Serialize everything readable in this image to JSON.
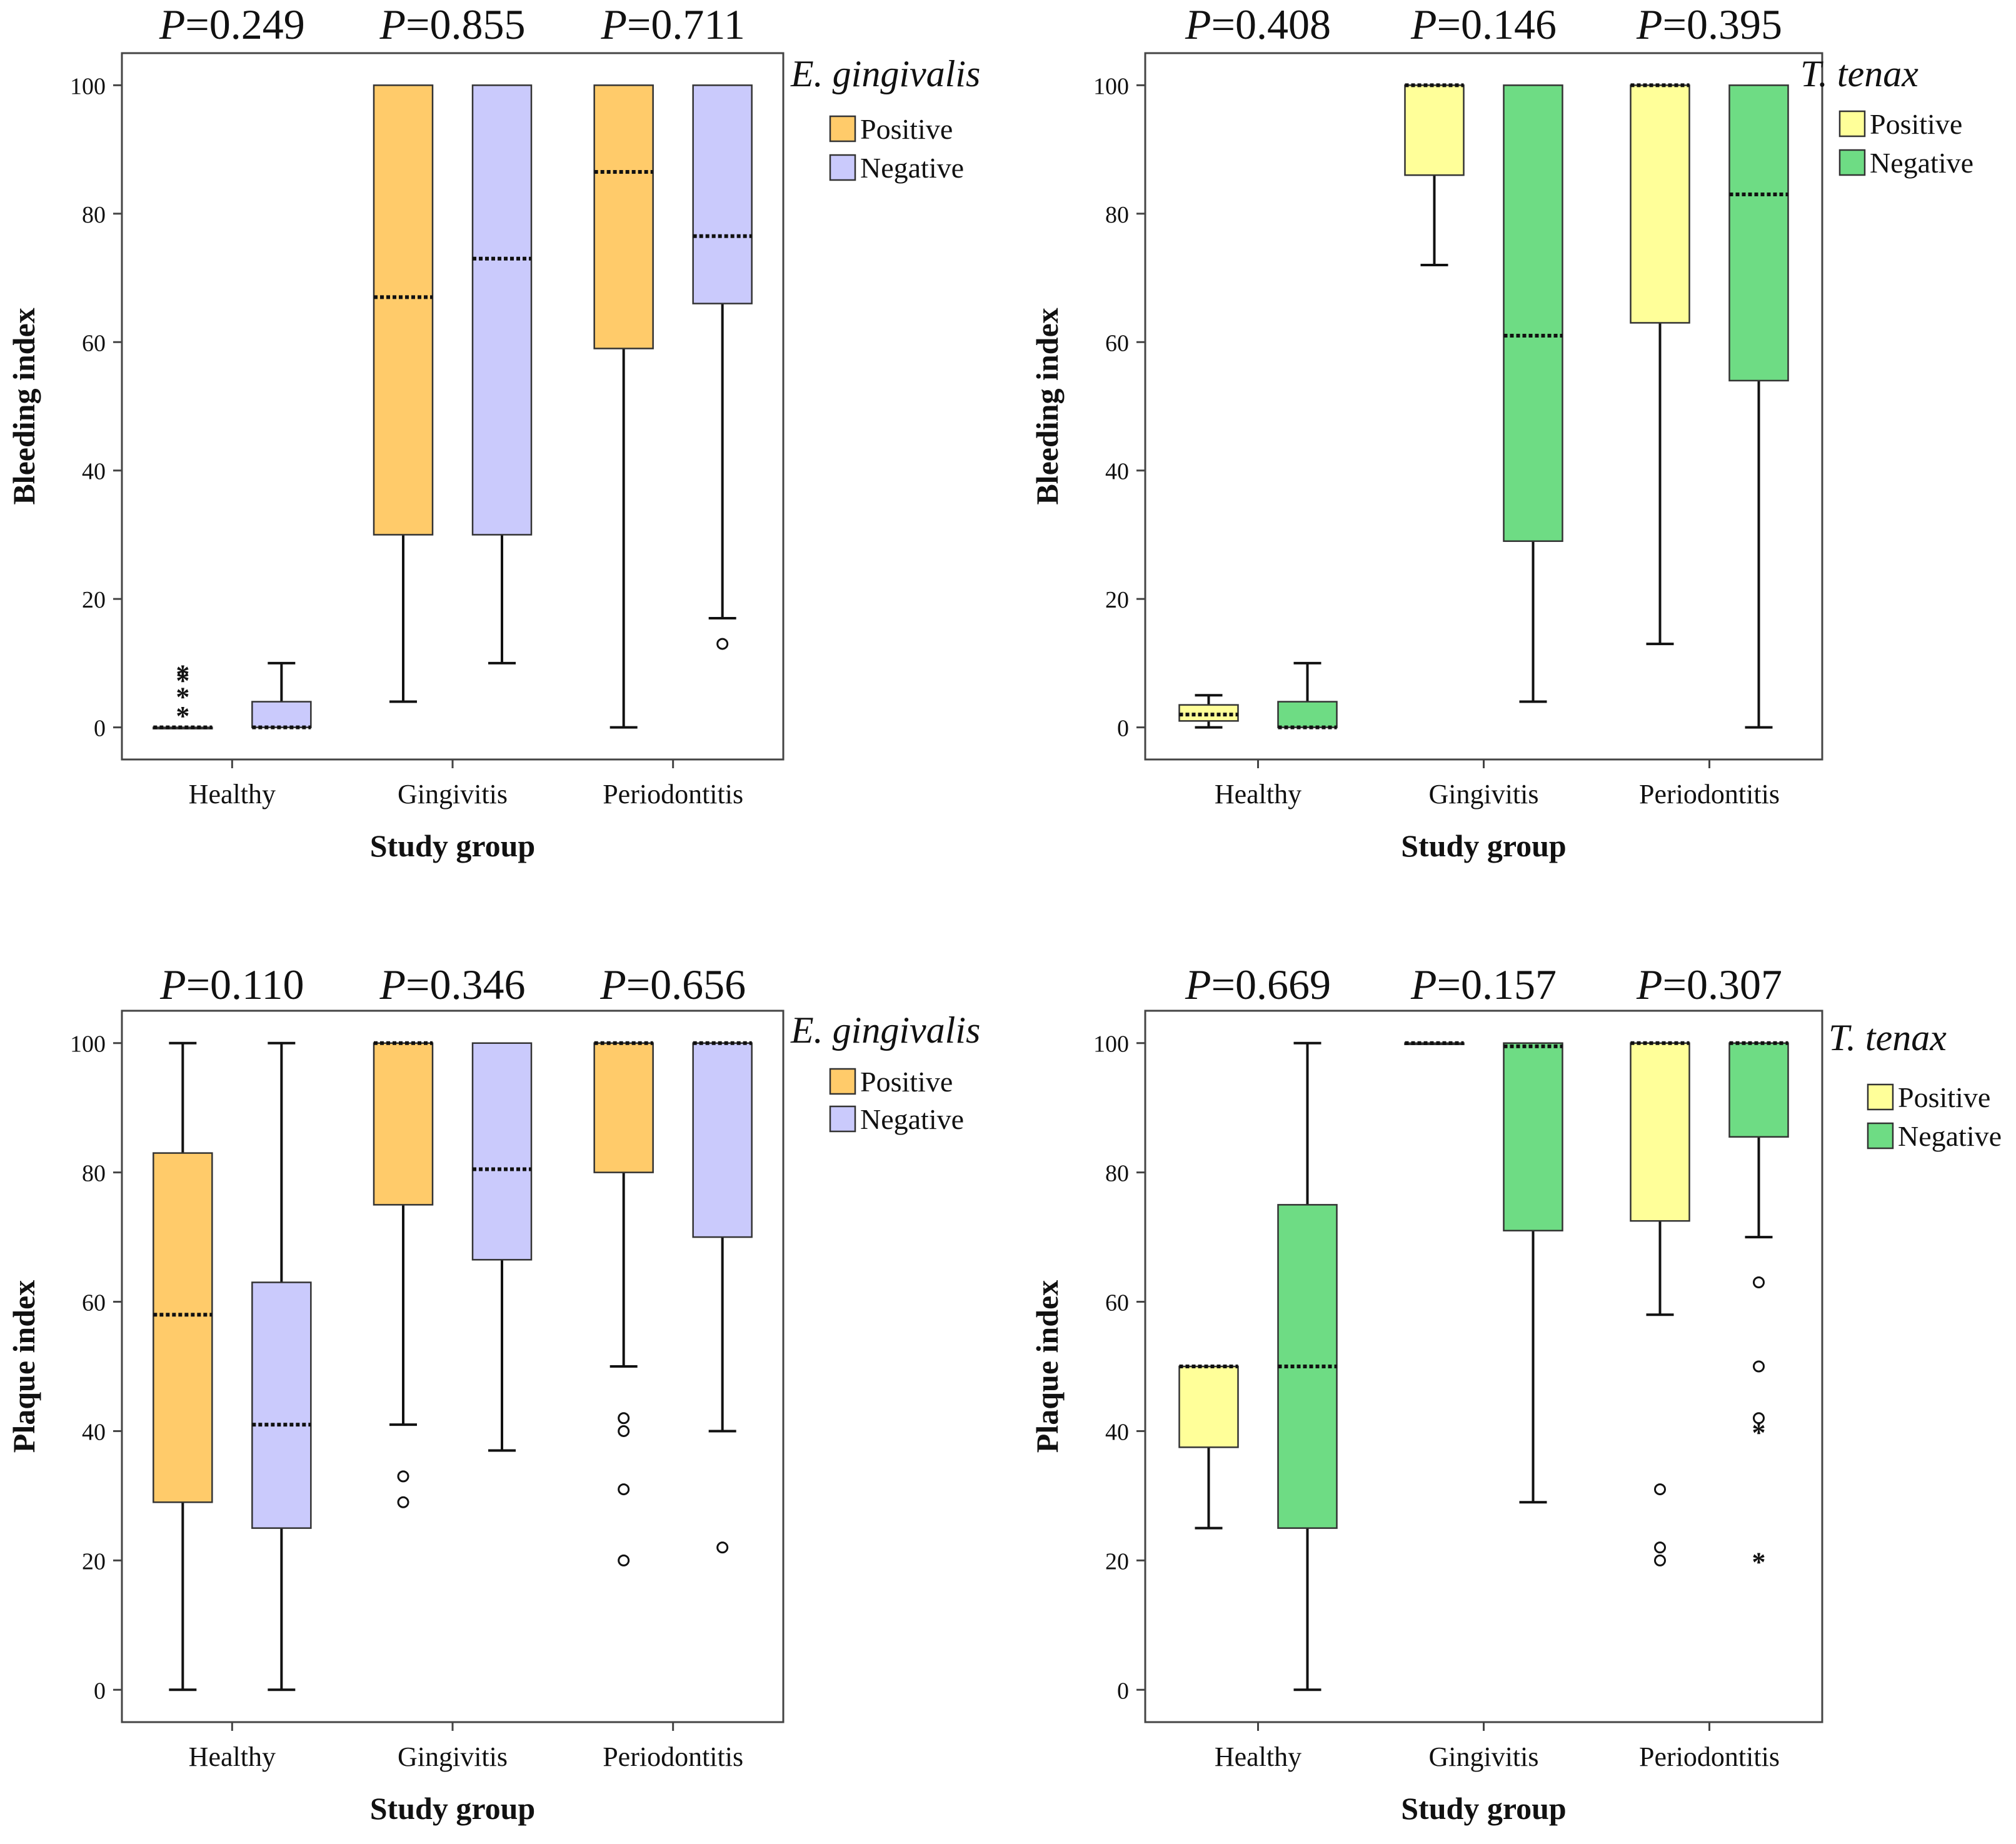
{
  "colors": {
    "eg_positive": "#FFCB6A",
    "eg_negative": "#CACAFC",
    "tt_positive": "#FFFF99",
    "tt_negative": "#6EDC84",
    "stroke": "#000000",
    "frame": "#444444"
  },
  "chart_data": [
    {
      "type": "box",
      "organism": "E. gingivalis",
      "ylabel": "Bleeding index",
      "xlabel": "Study group",
      "ylim": [
        -5,
        105
      ],
      "yticks": [
        0,
        20,
        40,
        60,
        80,
        100
      ],
      "categories": [
        "Healthy",
        "Gingivitis",
        "Periodontitis"
      ],
      "p_prefix": "P",
      "p_values": [
        "=0.249",
        "=0.855",
        "=0.711"
      ],
      "legend": {
        "title": "E. gingivalis",
        "entries": [
          "Positive",
          "Negative"
        ],
        "placement": "top-right, outside plot"
      },
      "series": [
        {
          "name": "Positive",
          "color": "#FFCB6A",
          "boxes": [
            {
              "group": "Healthy",
              "min": 0,
              "q1": 0,
              "median": 0,
              "q3": 0,
              "max": 0,
              "outliers": [],
              "extremes": [
                2,
                5,
                7.5,
                8.5
              ]
            },
            {
              "group": "Gingivitis",
              "min": 4,
              "q1": 30,
              "median": 67,
              "q3": 100,
              "max": 100,
              "outliers": [],
              "extremes": []
            },
            {
              "group": "Periodontitis",
              "min": 0,
              "q1": 59,
              "median": 86.5,
              "q3": 100,
              "max": 100,
              "outliers": [],
              "extremes": []
            }
          ]
        },
        {
          "name": "Negative",
          "color": "#CACAFC",
          "boxes": [
            {
              "group": "Healthy",
              "min": 0,
              "q1": 0,
              "median": 0,
              "q3": 4,
              "max": 10,
              "outliers": [],
              "extremes": []
            },
            {
              "group": "Gingivitis",
              "min": 10,
              "q1": 30,
              "median": 73,
              "q3": 100,
              "max": 100,
              "outliers": [],
              "extremes": []
            },
            {
              "group": "Periodontitis",
              "min": 17,
              "q1": 66,
              "median": 76.5,
              "q3": 100,
              "max": 100,
              "outliers": [
                13
              ],
              "extremes": []
            }
          ]
        }
      ]
    },
    {
      "type": "box",
      "organism": "T. tenax",
      "ylabel": "Bleeding index",
      "xlabel": "Study group",
      "ylim": [
        -5,
        105
      ],
      "yticks": [
        0,
        20,
        40,
        60,
        80,
        100
      ],
      "categories": [
        "Healthy",
        "Gingivitis",
        "Periodontitis"
      ],
      "p_prefix": "P",
      "p_values": [
        "=0.408",
        "=0.146",
        "=0.395"
      ],
      "legend": {
        "title": "T. tenax",
        "entries": [
          "Positive",
          "Negative"
        ],
        "placement": "top-right, outside plot"
      },
      "series": [
        {
          "name": "Positive",
          "color": "#FFFF99",
          "boxes": [
            {
              "group": "Healthy",
              "min": 0,
              "q1": 1,
              "median": 2,
              "q3": 3.5,
              "max": 5,
              "outliers": [],
              "extremes": []
            },
            {
              "group": "Gingivitis",
              "min": 72,
              "q1": 86,
              "median": 100,
              "q3": 100,
              "max": 100,
              "outliers": [],
              "extremes": []
            },
            {
              "group": "Periodontitis",
              "min": 13,
              "q1": 63,
              "median": 100,
              "q3": 100,
              "max": 100,
              "outliers": [],
              "extremes": []
            }
          ]
        },
        {
          "name": "Negative",
          "color": "#6EDC84",
          "boxes": [
            {
              "group": "Healthy",
              "min": 0,
              "q1": 0,
              "median": 0,
              "q3": 4,
              "max": 10,
              "outliers": [],
              "extremes": []
            },
            {
              "group": "Gingivitis",
              "min": 4,
              "q1": 29,
              "median": 61,
              "q3": 100,
              "max": 100,
              "outliers": [],
              "extremes": []
            },
            {
              "group": "Periodontitis",
              "min": 0,
              "q1": 54,
              "median": 83,
              "q3": 100,
              "max": 100,
              "outliers": [],
              "extremes": []
            }
          ]
        }
      ]
    },
    {
      "type": "box",
      "organism": "E. gingivalis",
      "ylabel": "Plaque index",
      "xlabel": "Study group",
      "ylim": [
        -5,
        105
      ],
      "yticks": [
        0,
        20,
        40,
        60,
        80,
        100
      ],
      "categories": [
        "Healthy",
        "Gingivitis",
        "Periodontitis"
      ],
      "p_prefix": "P",
      "p_values": [
        "=0.110",
        "=0.346",
        "=0.656"
      ],
      "legend": {
        "title": "E. gingivalis",
        "entries": [
          "Positive",
          "Negative"
        ],
        "placement": "top-right, outside plot"
      },
      "series": [
        {
          "name": "Positive",
          "color": "#FFCB6A",
          "boxes": [
            {
              "group": "Healthy",
              "min": 0,
              "q1": 29,
              "median": 58,
              "q3": 83,
              "max": 100,
              "outliers": [],
              "extremes": []
            },
            {
              "group": "Gingivitis",
              "min": 41,
              "q1": 75,
              "median": 100,
              "q3": 100,
              "max": 100,
              "outliers": [
                33,
                29
              ],
              "extremes": []
            },
            {
              "group": "Periodontitis",
              "min": 50,
              "q1": 80,
              "median": 100,
              "q3": 100,
              "max": 100,
              "outliers": [
                42,
                40,
                31,
                20
              ],
              "extremes": []
            }
          ]
        },
        {
          "name": "Negative",
          "color": "#CACAFC",
          "boxes": [
            {
              "group": "Healthy",
              "min": 0,
              "q1": 25,
              "median": 41,
              "q3": 63,
              "max": 100,
              "outliers": [],
              "extremes": []
            },
            {
              "group": "Gingivitis",
              "min": 37,
              "q1": 66.5,
              "median": 80.5,
              "q3": 100,
              "max": 100,
              "outliers": [],
              "extremes": []
            },
            {
              "group": "Periodontitis",
              "min": 40,
              "q1": 70,
              "median": 100,
              "q3": 100,
              "max": 100,
              "outliers": [
                22
              ],
              "extremes": []
            }
          ]
        }
      ]
    },
    {
      "type": "box",
      "organism": "T. tenax",
      "ylabel": "Plaque index",
      "xlabel": "Study group",
      "ylim": [
        -5,
        105
      ],
      "yticks": [
        0,
        20,
        40,
        60,
        80,
        100
      ],
      "categories": [
        "Healthy",
        "Gingivitis",
        "Periodontitis"
      ],
      "p_prefix": "P",
      "p_values": [
        "=0.669",
        "=0.157",
        "=0.307"
      ],
      "legend": {
        "title": "T. tenax",
        "entries": [
          "Positive",
          "Negative"
        ],
        "placement": "top-right, outside plot"
      },
      "series": [
        {
          "name": "Positive",
          "color": "#FFFF99",
          "boxes": [
            {
              "group": "Healthy",
              "min": 25,
              "q1": 37.5,
              "median": 50,
              "q3": 50,
              "max": 50,
              "outliers": [],
              "extremes": []
            },
            {
              "group": "Gingivitis",
              "min": 100,
              "q1": 100,
              "median": 100,
              "q3": 100,
              "max": 100,
              "outliers": [],
              "extremes": []
            },
            {
              "group": "Periodontitis",
              "min": 58,
              "q1": 72.5,
              "median": 100,
              "q3": 100,
              "max": 100,
              "outliers": [
                31,
                22,
                20
              ],
              "extremes": []
            }
          ]
        },
        {
          "name": "Negative",
          "color": "#6EDC84",
          "boxes": [
            {
              "group": "Healthy",
              "min": 0,
              "q1": 25,
              "median": 50,
              "q3": 75,
              "max": 100,
              "outliers": [],
              "extremes": []
            },
            {
              "group": "Gingivitis",
              "min": 29,
              "q1": 71,
              "median": 99.5,
              "q3": 100,
              "max": 100,
              "outliers": [],
              "extremes": []
            },
            {
              "group": "Periodontitis",
              "min": 70,
              "q1": 85.5,
              "median": 100,
              "q3": 100,
              "max": 100,
              "outliers": [
                63,
                50,
                42
              ],
              "extremes": [
                40,
                20
              ]
            }
          ]
        }
      ]
    }
  ]
}
